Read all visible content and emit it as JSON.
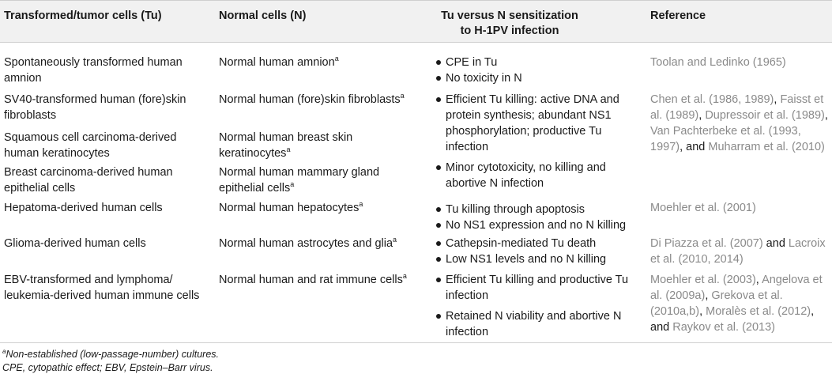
{
  "headers": {
    "tumor": "Transformed/tumor cells (Tu)",
    "normal": "Normal cells (N)",
    "sens_line1": "Tu versus N sensitization",
    "sens_line2": "to H-1PV infection",
    "reference": "Reference"
  },
  "rows": [
    {
      "tumor": "Spontaneously transformed human amnion",
      "normal": "Normal human amnion",
      "normal_sup": "a",
      "bullets": [
        "CPE in Tu",
        "No toxicity in N"
      ],
      "ref_parts": [
        "Toolan and Ledinko (1965)"
      ]
    },
    {
      "tumor": "SV40-transformed human (fore)skin fibroblasts",
      "normal": "Normal human (fore)skin fibroblasts",
      "normal_sup": "a",
      "bullets": [
        "Efficient Tu killing: active DNA and protein synthesis; abundant NS1 phosphorylation; productive Tu infection",
        "Minor cytotoxicity, no killing and abortive N infection"
      ],
      "ref_parts": [
        "Chen et al. (1986, 1989)",
        ", ",
        "Faisst et al. (1989)",
        ", ",
        "Dupressoir et al. (1989)",
        ", ",
        "Van Pachterbeke et al. (1993, 1997)",
        ", and ",
        "Muharram et al. (2010)"
      ]
    },
    {
      "tumor": "Squamous cell carcinoma-derived human keratinocytes",
      "normal": "Normal human breast skin keratinocytes",
      "normal_sup": "a"
    },
    {
      "tumor": "Breast carcinoma-derived human epithelial cells",
      "normal": "Normal human mammary gland epithelial cells",
      "normal_sup": "a"
    },
    {
      "tumor": "Hepatoma-derived human cells",
      "normal": "Normal human hepatocytes",
      "normal_sup": "a",
      "bullets": [
        "Tu killing through apoptosis",
        "No NS1 expression and no N killing"
      ],
      "ref_parts": [
        "Moehler et al. (2001)"
      ]
    },
    {
      "tumor": "Glioma-derived human cells",
      "normal": "Normal human astrocytes and glia",
      "normal_sup": "a",
      "bullets": [
        "Cathepsin-mediated Tu death",
        "Low NS1 levels and no N killing"
      ],
      "ref_parts": [
        "Di Piazza et al. (2007)",
        " and ",
        "Lacroix et al. (2010, 2014)"
      ]
    },
    {
      "tumor": "EBV-transformed and lymphoma/ leukemia-derived human immune cells",
      "normal": "Normal human and rat immune cells",
      "normal_sup": "a",
      "bullets": [
        "Efficient Tu killing and productive Tu infection",
        "Retained N viability and abortive N infection"
      ],
      "ref_parts": [
        "Moehler et al. (2003)",
        ", ",
        "Angelova et al. (2009a)",
        ", ",
        "Grekova et al. (2010a,b)",
        ", ",
        "Moralès et al. (2012)",
        ", and ",
        "Raykov et al. (2013)"
      ]
    }
  ],
  "footnotes": {
    "a_mark": "a",
    "a_text": "Non-established (low-passage-number) cultures.",
    "abbrev": "CPE, cytopathic effect; EBV, Epstein–Barr virus."
  }
}
